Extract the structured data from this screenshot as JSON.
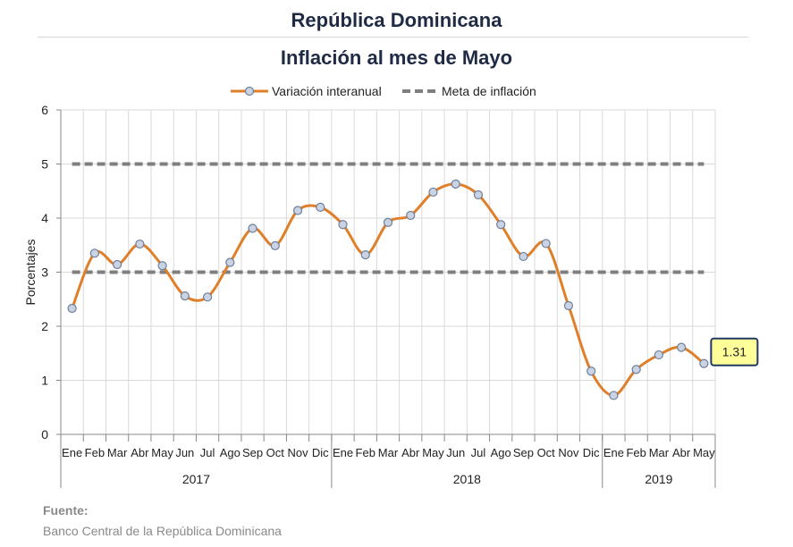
{
  "title": "República Dominicana",
  "subtitle": "Inflación al mes de Mayo",
  "source": {
    "label": "Fuente:",
    "text": "Banco Central de la República Dominicana"
  },
  "colors": {
    "series": "#e07f2a",
    "marker_fill": "#c9d3e3",
    "marker_stroke": "#6f7f99",
    "target": "#7f7f7f",
    "callout_fill": "#ffff99",
    "callout_border": "#1f3864"
  },
  "chart_data": {
    "type": "line",
    "ylabel": "Porcentajes",
    "ylim": [
      0,
      6
    ],
    "yticks": [
      0,
      1,
      2,
      3,
      4,
      5,
      6
    ],
    "grid": true,
    "legend_position": "top",
    "categories": [
      "Ene",
      "Feb",
      "Mar",
      "Abr",
      "May",
      "Jun",
      "Jul",
      "Ago",
      "Sep",
      "Oct",
      "Nov",
      "Dic",
      "Ene",
      "Feb",
      "Mar",
      "Abr",
      "May",
      "Jun",
      "Jul",
      "Ago",
      "Sep",
      "Oct",
      "Nov",
      "Dic",
      "Ene",
      "Feb",
      "Mar",
      "Abr",
      "May"
    ],
    "year_groups": [
      {
        "label": "2017",
        "count": 12
      },
      {
        "label": "2018",
        "count": 12
      },
      {
        "label": "2019",
        "count": 5
      }
    ],
    "series": [
      {
        "name": "Variación interanual",
        "style": "smooth line with circle markers",
        "values": [
          2.33,
          3.35,
          3.14,
          3.52,
          3.12,
          2.56,
          2.54,
          3.18,
          3.81,
          3.49,
          4.14,
          4.2,
          3.88,
          3.32,
          3.92,
          4.05,
          4.48,
          4.63,
          4.43,
          3.88,
          3.29,
          3.53,
          2.38,
          1.17,
          0.72,
          1.2,
          1.47,
          1.61,
          1.31
        ]
      },
      {
        "name": "Meta de inflación",
        "style": "dashed band bounds",
        "bounds": [
          3,
          5
        ]
      }
    ],
    "annotations": [
      {
        "index": 28,
        "text": "1.31"
      }
    ]
  }
}
